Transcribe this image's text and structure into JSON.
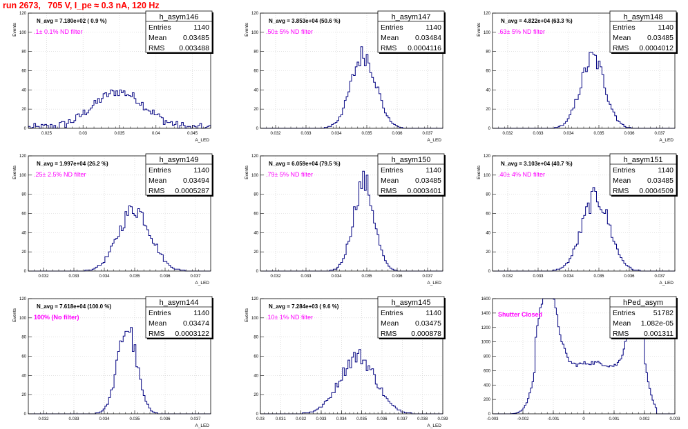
{
  "title": "run 2673,   705 V, I_pe ≈ 0.3 nA, 120 Hz",
  "colors": {
    "title": "#ff0000",
    "hist": "#000080",
    "note": "#ff00ff",
    "grid": "#d0d0d0"
  },
  "stats_labels": {
    "entries": "Entries",
    "mean": "Mean",
    "rms": "RMS"
  },
  "chart_data": [
    {
      "type": "bar",
      "name": "h_asym146",
      "entries": "1140",
      "mean": "0.03485",
      "rms": "0.003488",
      "navg": "N_avg = 7.180e+02 ( 0.9 %)",
      "note": ".1± 0.1% ND filter",
      "ylabel": "Events",
      "xlabel": "A_LED",
      "xlim": [
        0.0225,
        0.0475
      ],
      "ylim": [
        0,
        120
      ],
      "xticks": [
        0.025,
        0.03,
        0.035,
        0.04,
        0.045
      ],
      "xtick_labels": [
        "0.025",
        "0.03",
        "0.035",
        "0.04",
        "0.045"
      ],
      "yticks": [
        0,
        20,
        40,
        60,
        80,
        100,
        120
      ],
      "grid": true,
      "style": "broad"
    },
    {
      "type": "bar",
      "name": "h_asym147",
      "entries": "1140",
      "mean": "0.03484",
      "rms": "0.0004116",
      "navg": "N_avg = 3.853e+04 (50.6 %)",
      "note": ".50± 5% ND filter",
      "ylabel": "Events",
      "xlabel": "A_LED",
      "xlim": [
        0.0315,
        0.0375
      ],
      "ylim": [
        0,
        120
      ],
      "xticks": [
        0.032,
        0.033,
        0.034,
        0.035,
        0.036,
        0.037
      ],
      "xtick_labels": [
        "0.032",
        "0.033",
        "0.034",
        "0.035",
        "0.036",
        "0.037"
      ],
      "yticks": [
        0,
        20,
        40,
        60,
        80,
        100,
        120
      ],
      "grid": true,
      "style": "peak",
      "peak_center": 0.0349,
      "peak_height": 77
    },
    {
      "type": "bar",
      "name": "h_asym148",
      "entries": "1140",
      "mean": "0.03485",
      "rms": "0.0004012",
      "navg": "N_avg = 4.822e+04 (63.3 %)",
      "note": ".63± 5% ND filter",
      "ylabel": "Events",
      "xlabel": "A_LED",
      "xlim": [
        0.0315,
        0.0375
      ],
      "ylim": [
        0,
        120
      ],
      "xticks": [
        0.032,
        0.033,
        0.034,
        0.035,
        0.036,
        0.037
      ],
      "xtick_labels": [
        "0.032",
        "0.033",
        "0.034",
        "0.035",
        "0.036",
        "0.037"
      ],
      "yticks": [
        0,
        20,
        40,
        60,
        80,
        100,
        120
      ],
      "grid": true,
      "style": "peak",
      "peak_center": 0.0348,
      "peak_height": 73
    },
    {
      "type": "bar",
      "name": "h_asym149",
      "entries": "1140",
      "mean": "0.03494",
      "rms": "0.0005287",
      "navg": "N_avg = 1.997e+04 (26.2 %)",
      "note": ".25± 2.5% ND filter",
      "ylabel": "Events",
      "xlabel": "A_LED",
      "xlim": [
        0.0315,
        0.0375
      ],
      "ylim": [
        0,
        120
      ],
      "xticks": [
        0.032,
        0.033,
        0.034,
        0.035,
        0.036,
        0.037
      ],
      "xtick_labels": [
        "0.032",
        "0.033",
        "0.034",
        "0.035",
        "0.036",
        "0.037"
      ],
      "yticks": [
        0,
        20,
        40,
        60,
        80,
        100,
        120
      ],
      "grid": true,
      "style": "peak",
      "peak_center": 0.035,
      "peak_height": 65
    },
    {
      "type": "bar",
      "name": "h_asym150",
      "entries": "1140",
      "mean": "0.03485",
      "rms": "0.0003401",
      "navg": "N_avg = 6.059e+04 (79.5 %)",
      "note": ".79± 5% ND filter",
      "ylabel": "Events",
      "xlabel": "A_LED",
      "xlim": [
        0.0315,
        0.0375
      ],
      "ylim": [
        0,
        120
      ],
      "xticks": [
        0.032,
        0.033,
        0.034,
        0.035,
        0.036,
        0.037
      ],
      "xtick_labels": [
        "0.032",
        "0.033",
        "0.034",
        "0.035",
        "0.036",
        "0.037"
      ],
      "yticks": [
        0,
        20,
        40,
        60,
        80,
        100,
        120
      ],
      "grid": true,
      "style": "peak",
      "peak_center": 0.0349,
      "peak_height": 93
    },
    {
      "type": "bar",
      "name": "h_asym151",
      "entries": "1140",
      "mean": "0.03485",
      "rms": "0.0004509",
      "navg": "N_avg = 3.103e+04 (40.7 %)",
      "note": ".40± 4% ND filter",
      "ylabel": "Events",
      "xlabel": "A_LED",
      "xlim": [
        0.0315,
        0.0375
      ],
      "ylim": [
        0,
        120
      ],
      "xticks": [
        0.032,
        0.033,
        0.034,
        0.035,
        0.036,
        0.037
      ],
      "xtick_labels": [
        "0.032",
        "0.033",
        "0.034",
        "0.035",
        "0.036",
        "0.037"
      ],
      "yticks": [
        0,
        20,
        40,
        60,
        80,
        100,
        120
      ],
      "grid": true,
      "style": "peak",
      "peak_center": 0.0349,
      "peak_height": 77
    },
    {
      "type": "bar",
      "name": "h_asym144",
      "entries": "1140",
      "mean": "0.03474",
      "rms": "0.0003122",
      "navg": "N_avg = 7.618e+04 (100.0 %)",
      "note": "100% (No filter)",
      "ylabel": "Events",
      "xlabel": "A_LED",
      "xlim": [
        0.0315,
        0.0375
      ],
      "ylim": [
        0,
        120
      ],
      "xticks": [
        0.032,
        0.033,
        0.034,
        0.035,
        0.036,
        0.037
      ],
      "xtick_labels": [
        "0.032",
        "0.033",
        "0.034",
        "0.035",
        "0.036",
        "0.037"
      ],
      "yticks": [
        0,
        20,
        40,
        60,
        80,
        100,
        120
      ],
      "grid": true,
      "style": "peak",
      "peak_center": 0.03475,
      "peak_height": 90
    },
    {
      "type": "bar",
      "name": "h_asym145",
      "entries": "1140",
      "mean": "0.03475",
      "rms": "0.000878",
      "navg": "N_avg = 7.284e+03 ( 9.6 %)",
      "note": ".10± 1% ND filter",
      "ylabel": "Events",
      "xlabel": "A_LED",
      "xlim": [
        0.03,
        0.039
      ],
      "ylim": [
        0,
        120
      ],
      "xticks": [
        0.03,
        0.031,
        0.032,
        0.033,
        0.034,
        0.035,
        0.036,
        0.037,
        0.038,
        0.039
      ],
      "xtick_labels": [
        "0.03",
        "0.031",
        "0.032",
        "0.033",
        "0.034",
        "0.035",
        "0.036",
        "0.037",
        "0.038",
        "0.039"
      ],
      "yticks": [
        0,
        20,
        40,
        60,
        80,
        100,
        120
      ],
      "grid": true,
      "style": "peak",
      "peak_center": 0.0348,
      "peak_height": 60
    },
    {
      "type": "bar",
      "name": "hPed_asym",
      "entries": "51782",
      "mean": "1.082e-05",
      "rms": "0.001311",
      "navg": "",
      "note": "Shutter Closed",
      "ylabel": "",
      "xlabel": "",
      "xlim": [
        -0.003,
        0.003
      ],
      "ylim": [
        0,
        1600
      ],
      "xticks": [
        -0.003,
        -0.002,
        -0.001,
        0,
        0.001,
        0.002,
        0.003
      ],
      "xtick_labels": [
        "-0.003",
        "-0.002",
        "-0.001",
        "0",
        "0.001",
        "0.002",
        "0.003"
      ],
      "yticks": [
        0,
        200,
        400,
        600,
        800,
        1000,
        1200,
        1400,
        1600
      ],
      "grid": true,
      "style": "pedestal"
    }
  ]
}
